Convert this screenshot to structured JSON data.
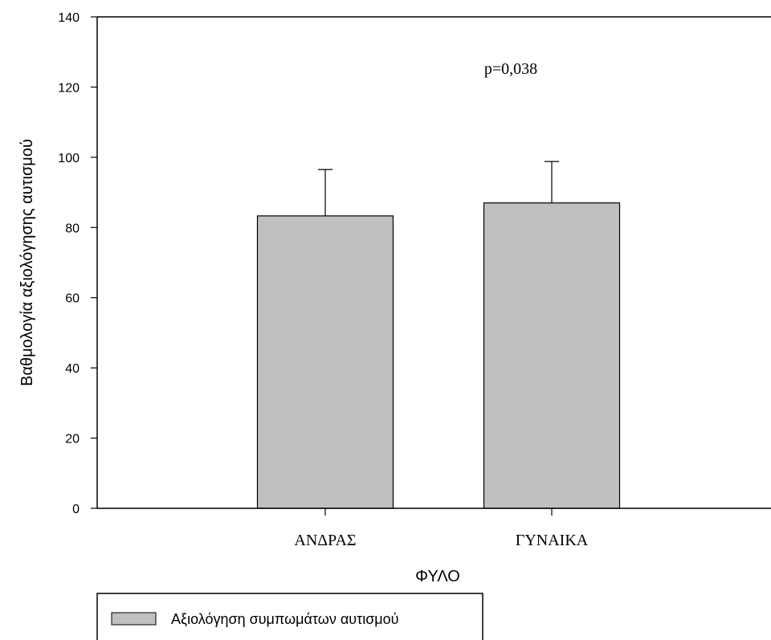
{
  "chart_data": {
    "type": "bar",
    "categories": [
      "ΑΝΔΡΑΣ",
      "ΓΥΝΑΙΚΑ"
    ],
    "series": [
      {
        "name": "Αξιολόγηση συμπωμάτων αυτισμού",
        "values": [
          83.3,
          87.0
        ],
        "error_upper": [
          13.2,
          11.8
        ],
        "color": "#c0c0c0"
      }
    ],
    "xlabel": "ΦΥΛΟ",
    "ylabel": "Βαθμολογία αξιολόγησης αυτισμού",
    "ylim": [
      0,
      140
    ],
    "yticks": [
      0,
      20,
      40,
      60,
      80,
      100,
      120,
      140
    ],
    "annotation": "p=0,038",
    "grid": false,
    "legend_position": "bottom-left"
  }
}
